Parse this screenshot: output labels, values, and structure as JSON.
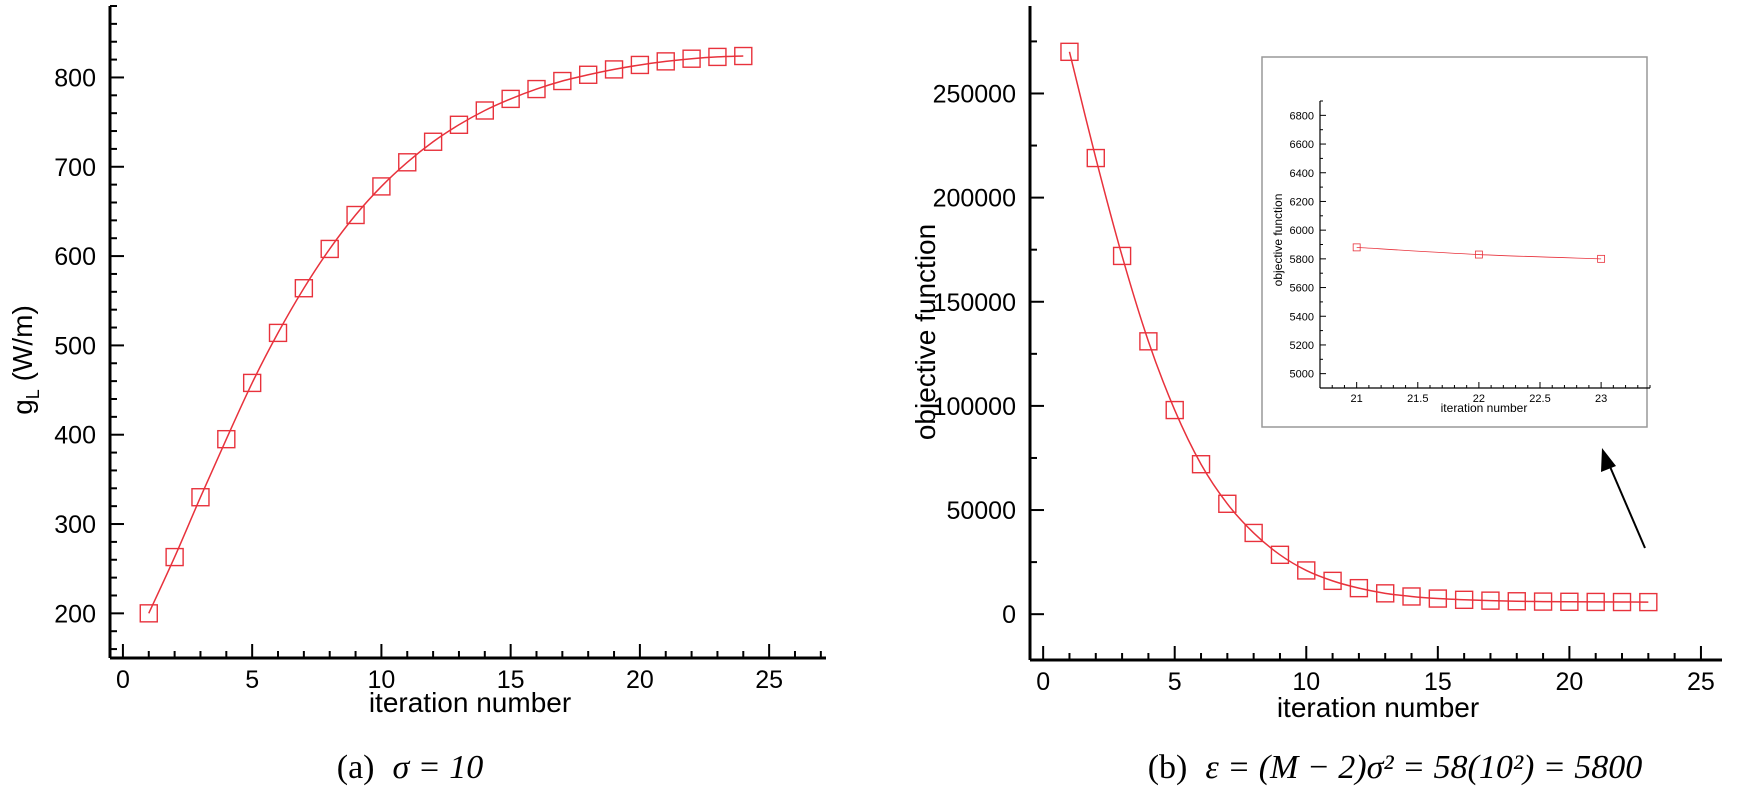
{
  "colors": {
    "series": "#e8323c",
    "axis": "#000000",
    "inset_border": "#999999"
  },
  "chart_data": [
    {
      "id": "a",
      "type": "line",
      "marker": "square",
      "xlabel": "iteration number",
      "ylabel_main": "g",
      "ylabel_sub": "L",
      "ylabel_rest": " (W/m)",
      "caption_label": "(a)",
      "caption_math": "σ = 10",
      "xlim": [
        -0.5,
        27.2
      ],
      "ylim": [
        150,
        880
      ],
      "x_ticks": [
        0,
        5,
        10,
        15,
        20,
        25
      ],
      "y_ticks": [
        200,
        300,
        400,
        500,
        600,
        700,
        800
      ],
      "x_tick_labels": [
        "0",
        "5",
        "10",
        "15",
        "20",
        "25"
      ],
      "y_tick_labels": [
        "200",
        "300",
        "400",
        "500",
        "600",
        "700",
        "800"
      ],
      "x": [
        1,
        2,
        3,
        4,
        5,
        6,
        7,
        8,
        9,
        10,
        11,
        12,
        13,
        14,
        15,
        16,
        17,
        18,
        19,
        20,
        21,
        22,
        23,
        24
      ],
      "y": [
        200,
        263,
        330,
        395,
        458,
        514,
        564,
        608,
        646,
        678,
        705,
        728,
        747,
        763,
        776,
        787,
        796,
        803,
        809,
        814,
        818,
        821,
        823,
        824
      ]
    },
    {
      "id": "b",
      "type": "line",
      "marker": "square",
      "xlabel": "iteration number",
      "ylabel": "objective function",
      "caption_label": "(b)",
      "caption_math": "ε = (M − 2)σ² = 58(10²) = 5800",
      "xlim": [
        -0.5,
        25.8
      ],
      "ylim": [
        -22000,
        292000
      ],
      "x_ticks": [
        0,
        5,
        10,
        15,
        20,
        25
      ],
      "y_ticks": [
        0,
        50000,
        100000,
        150000,
        200000,
        250000
      ],
      "x_tick_labels": [
        "0",
        "5",
        "10",
        "15",
        "20",
        "25"
      ],
      "y_tick_labels": [
        "0",
        "50000",
        "100000",
        "150000",
        "200000",
        "250000"
      ],
      "x": [
        1,
        2,
        3,
        4,
        5,
        6,
        7,
        8,
        9,
        10,
        11,
        12,
        13,
        14,
        15,
        16,
        17,
        18,
        19,
        20,
        21,
        22,
        23
      ],
      "y": [
        270000,
        219000,
        172000,
        131000,
        98000,
        72000,
        53000,
        39000,
        28500,
        21000,
        16000,
        12500,
        10000,
        8500,
        7500,
        6900,
        6500,
        6200,
        6050,
        5950,
        5880,
        5830,
        5800
      ],
      "inset": {
        "xlabel": "iteration number",
        "ylabel": "objective function",
        "xlim": [
          20.7,
          23.4
        ],
        "ylim": [
          4900,
          6900
        ],
        "x_ticks": [
          21,
          21.5,
          22,
          22.5,
          23
        ],
        "y_ticks": [
          5000,
          5200,
          5400,
          5600,
          5800,
          6000,
          6200,
          6400,
          6600,
          6800
        ],
        "x_tick_labels": [
          "21",
          "21.5",
          "22",
          "22.5",
          "23"
        ],
        "y_tick_labels": [
          "5000",
          "5200",
          "5400",
          "5600",
          "5800",
          "6000",
          "6200",
          "6400",
          "6600",
          "6800"
        ],
        "x": [
          21,
          22,
          23
        ],
        "y": [
          5880,
          5830,
          5800
        ]
      }
    }
  ]
}
